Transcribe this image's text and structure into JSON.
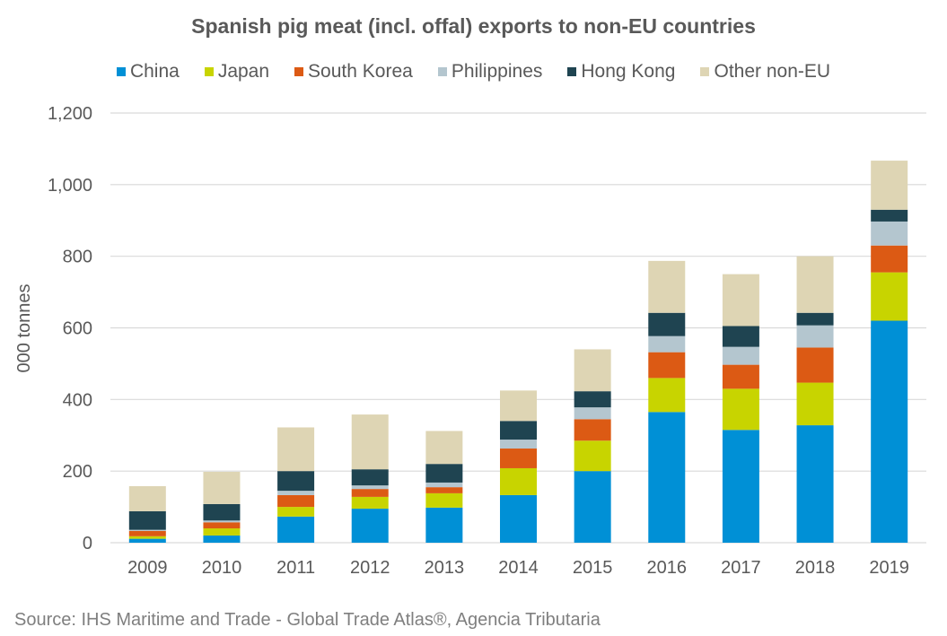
{
  "chart_data": {
    "type": "bar",
    "stacked": true,
    "title": "Spanish pig meat (incl. offal) exports to non-EU countries",
    "xlabel": "",
    "ylabel": "000 tonnes",
    "ylim": [
      0,
      1200
    ],
    "yticks": [
      0,
      200,
      400,
      600,
      800,
      1000,
      1200
    ],
    "ytick_labels": [
      "0",
      "200",
      "400",
      "600",
      "800",
      "1,000",
      "1,200"
    ],
    "grid": true,
    "legend_position": "top",
    "categories": [
      "2009",
      "2010",
      "2011",
      "2012",
      "2013",
      "2014",
      "2015",
      "2016",
      "2017",
      "2018",
      "2019"
    ],
    "series": [
      {
        "name": "China",
        "color": "#0090D6",
        "values": [
          11,
          20,
          73,
          95,
          98,
          133,
          200,
          365,
          315,
          328,
          620
        ]
      },
      {
        "name": "Japan",
        "color": "#C8D400",
        "values": [
          7,
          20,
          27,
          33,
          40,
          75,
          85,
          95,
          115,
          119,
          135
        ]
      },
      {
        "name": "South Korea",
        "color": "#DC5A14",
        "values": [
          15,
          17,
          33,
          22,
          17,
          55,
          60,
          72,
          67,
          98,
          75
        ]
      },
      {
        "name": "Philippines",
        "color": "#B4C6CF",
        "values": [
          3,
          5,
          12,
          10,
          13,
          25,
          33,
          45,
          50,
          62,
          67
        ]
      },
      {
        "name": "Hong Kong",
        "color": "#1F4451",
        "values": [
          52,
          46,
          55,
          45,
          52,
          52,
          45,
          65,
          58,
          35,
          33
        ]
      },
      {
        "name": "Other non-EU",
        "color": "#DED5B4",
        "values": [
          70,
          90,
          122,
          153,
          92,
          85,
          117,
          145,
          145,
          158,
          137
        ]
      }
    ],
    "source": "Source: IHS Maritime and Trade - Global Trade Atlas®, Agencia Tributaria"
  }
}
